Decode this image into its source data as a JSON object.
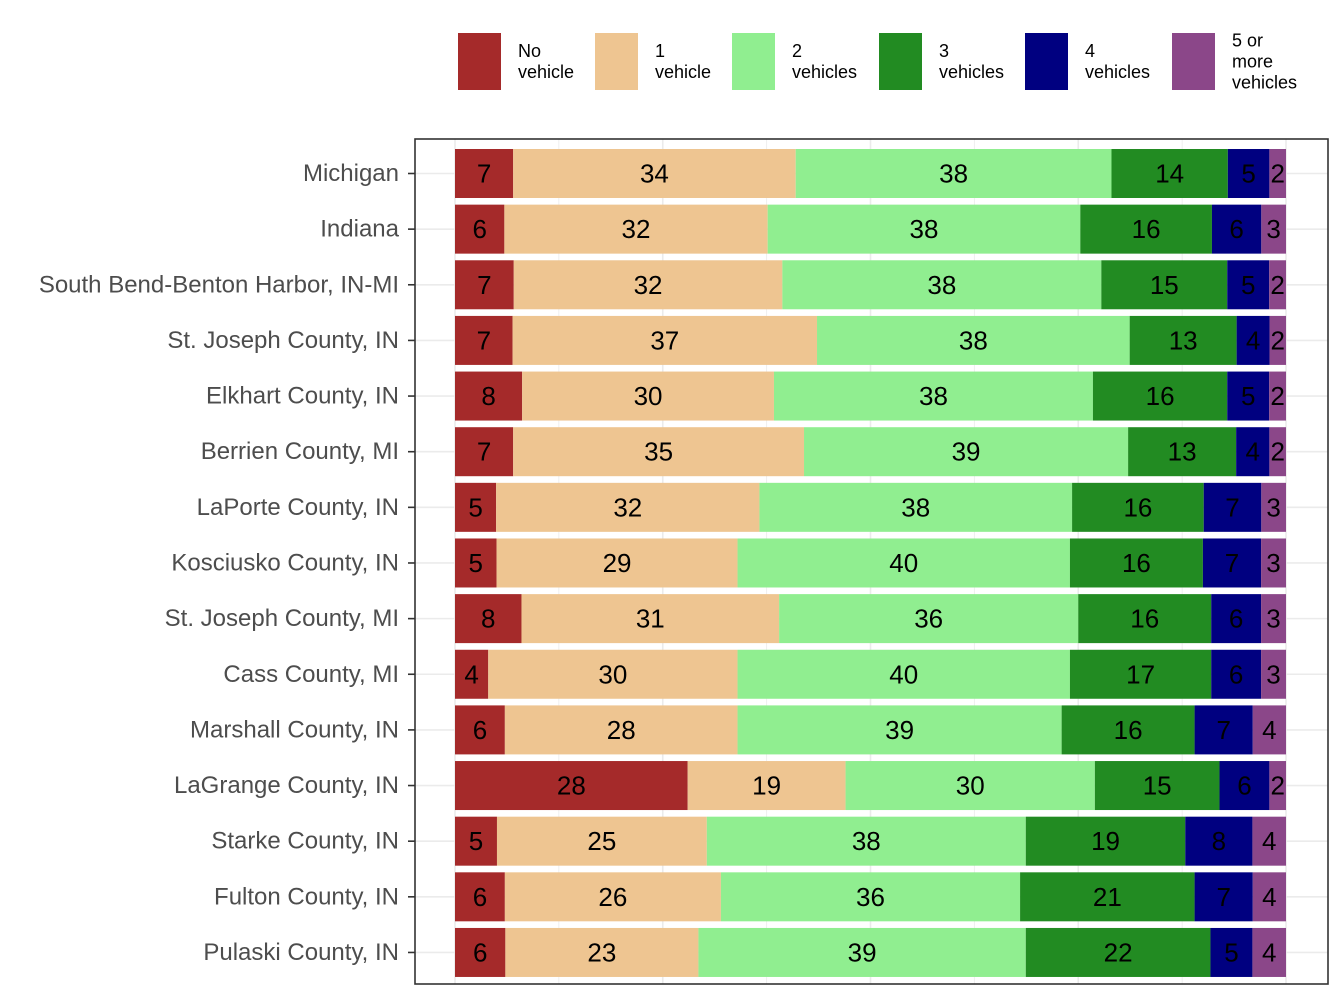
{
  "chart_data": {
    "type": "bar",
    "orientation": "horizontal",
    "stacked": true,
    "normalized_percent": true,
    "title": "",
    "xlabel": "",
    "ylabel": "",
    "xlim": [
      0,
      100
    ],
    "legend_position": "top-right",
    "categories": [
      "Michigan",
      "Indiana",
      "South Bend-Benton Harbor, IN-MI",
      "St. Joseph County, IN",
      "Elkhart County, IN",
      "Berrien County, MI",
      "LaPorte County, IN",
      "Kosciusko County, IN",
      "St. Joseph County, MI",
      "Cass County, MI",
      "Marshall County, IN",
      "LaGrange County, IN",
      "Starke County, IN",
      "Fulton County, IN",
      "Pulaski County, IN"
    ],
    "series": [
      {
        "name": "No vehicle",
        "legend_lines": [
          "No",
          "vehicle"
        ],
        "color": "#a52a2a",
        "values": [
          7,
          6,
          7,
          7,
          8,
          7,
          5,
          5,
          8,
          4,
          6,
          28,
          5,
          6,
          6
        ]
      },
      {
        "name": "1 vehicle",
        "legend_lines": [
          "1",
          "vehicle"
        ],
        "color": "#eec591",
        "values": [
          34,
          32,
          32,
          37,
          30,
          35,
          32,
          29,
          31,
          30,
          28,
          19,
          25,
          26,
          23
        ]
      },
      {
        "name": "2 vehicles",
        "legend_lines": [
          "2",
          "vehicles"
        ],
        "color": "#90ee90",
        "values": [
          38,
          38,
          38,
          38,
          38,
          39,
          38,
          40,
          36,
          40,
          39,
          30,
          38,
          36,
          39
        ]
      },
      {
        "name": "3 vehicles",
        "legend_lines": [
          "3",
          "vehicles"
        ],
        "color": "#228b22",
        "values": [
          14,
          16,
          15,
          13,
          16,
          13,
          16,
          16,
          16,
          17,
          16,
          15,
          19,
          21,
          22
        ]
      },
      {
        "name": "4 vehicles",
        "legend_lines": [
          "4",
          "vehicles"
        ],
        "color": "#000080",
        "values": [
          5,
          6,
          5,
          4,
          5,
          4,
          7,
          7,
          6,
          6,
          7,
          6,
          8,
          7,
          5
        ]
      },
      {
        "name": "5 or more vehicles",
        "legend_lines": [
          "5 or",
          "more",
          "vehicles"
        ],
        "color": "#8b4789",
        "values": [
          2,
          3,
          2,
          2,
          2,
          2,
          3,
          3,
          3,
          3,
          4,
          2,
          4,
          4,
          4
        ]
      }
    ]
  }
}
